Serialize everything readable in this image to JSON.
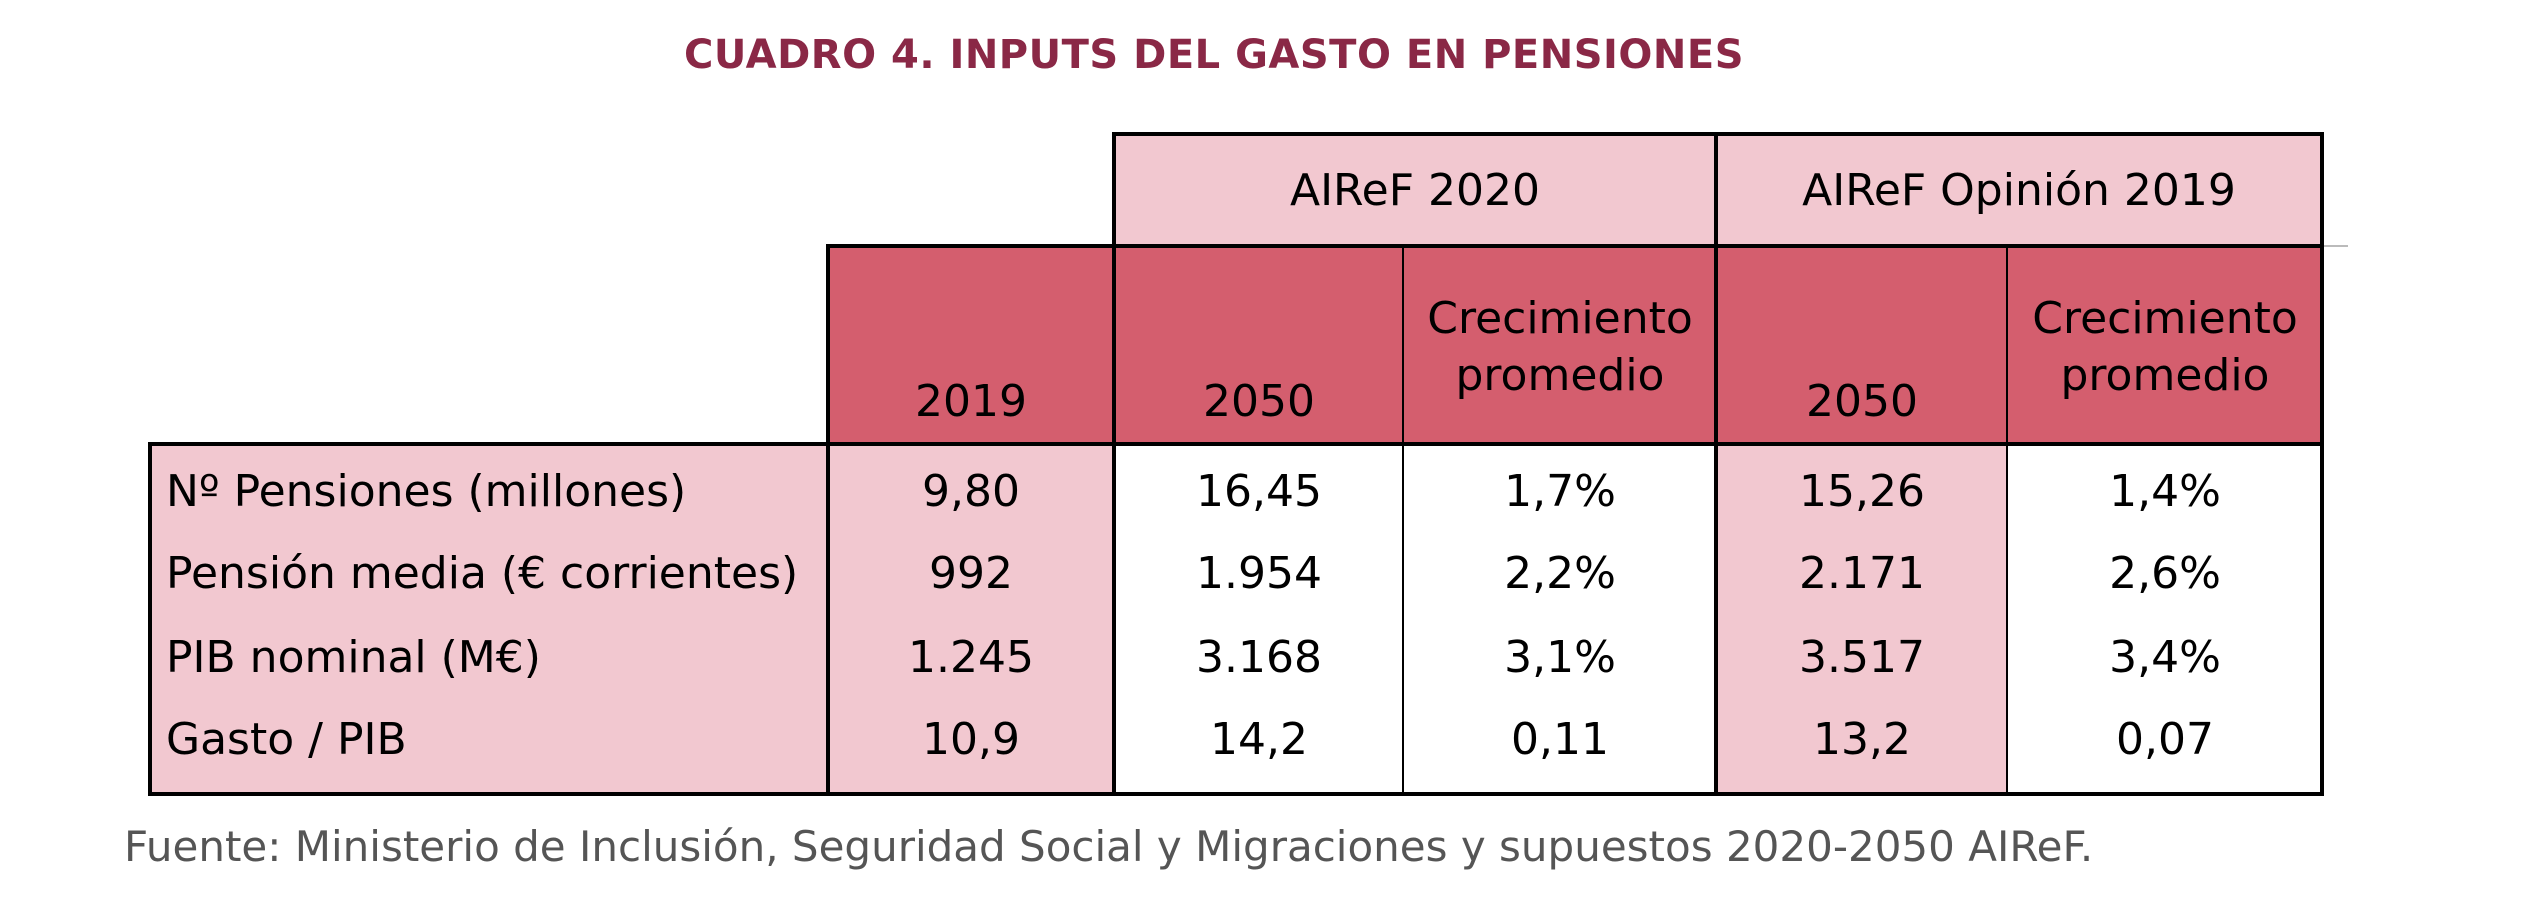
{
  "title": "CUADRO 4. INPUTS DEL GASTO EN PENSIONES",
  "groups": {
    "g1": "AIReF 2020",
    "g2": "AIReF Opinión 2019"
  },
  "columns": {
    "c2019": "2019",
    "c2050a": "2050",
    "crecA_l1": "Crecimiento",
    "crecA_l2": "promedio",
    "c2050b": "2050",
    "crecB_l1": "Crecimiento",
    "crecB_l2": "promedio"
  },
  "rows": [
    {
      "label": "Nº Pensiones (millones)",
      "v2019": "9,80",
      "v2050a": "16,45",
      "crecA": "1,7%",
      "v2050b": "15,26",
      "crecB": "1,4%"
    },
    {
      "label": "Pensión media (€ corrientes)",
      "v2019": "992",
      "v2050a": "1.954",
      "crecA": "2,2%",
      "v2050b": "2.171",
      "crecB": "2,6%"
    },
    {
      "label": "PIB nominal (M€)",
      "v2019": "1.245",
      "v2050a": "3.168",
      "crecA": "3,1%",
      "v2050b": "3.517",
      "crecB": "3,4%"
    },
    {
      "label": "Gasto / PIB",
      "v2019": "10,9",
      "v2050a": "14,2",
      "crecA": "0,11",
      "v2050b": "13,2",
      "crecB": "0,07"
    }
  ],
  "source": "Fuente: Ministerio de Inclusión, Seguridad Social y Migraciones y supuestos 2020-2050 AIReF.",
  "colors": {
    "title": "#8a2846",
    "light_pink": "#f2c8d0",
    "dark_pink": "#d45e6e",
    "source_text": "#555555"
  }
}
